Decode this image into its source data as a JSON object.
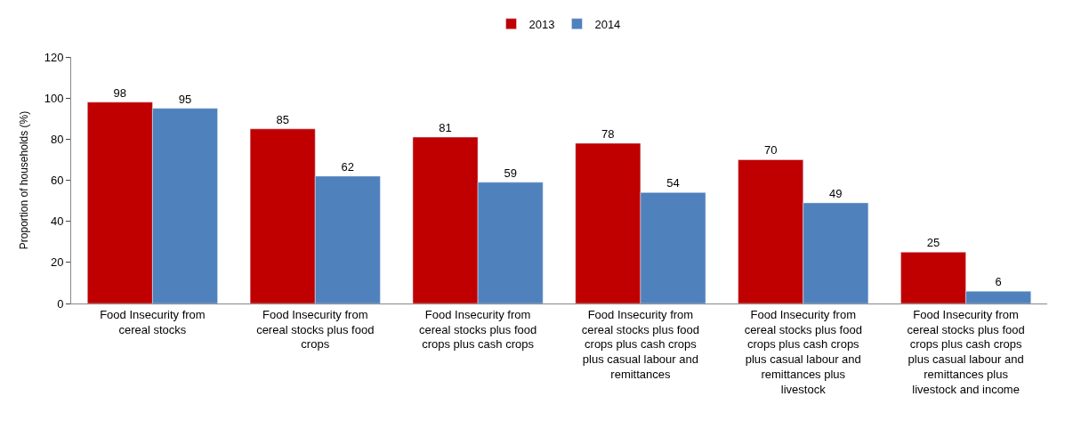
{
  "chart_data": {
    "type": "bar",
    "ylabel": "Proportion of households (%)",
    "categories": [
      "Food Insecurity from cereal stocks",
      "Food Insecurity from cereal stocks plus food crops",
      "Food Insecurity from cereal stocks plus food crops plus cash crops",
      "Food Insecurity from cereal stocks plus food crops plus cash crops plus casual labour and remittances",
      "Food Insecurity from cereal stocks plus food crops plus cash crops plus casual labour and remittances plus livestock",
      "Food Insecurity from cereal stocks plus food crops plus cash crops plus casual labour and remittances plus livestock and income"
    ],
    "series": [
      {
        "name": "2013",
        "color": "#c00000",
        "values": [
          98,
          85,
          81,
          78,
          70,
          25
        ]
      },
      {
        "name": "2014",
        "color": "#4f81bd",
        "values": [
          95,
          62,
          59,
          54,
          49,
          6
        ]
      }
    ],
    "ylim": [
      0,
      120
    ],
    "yticks": [
      0,
      20,
      40,
      60,
      80,
      100,
      120
    ],
    "grid": false,
    "legend": "top",
    "data_labels": true
  }
}
